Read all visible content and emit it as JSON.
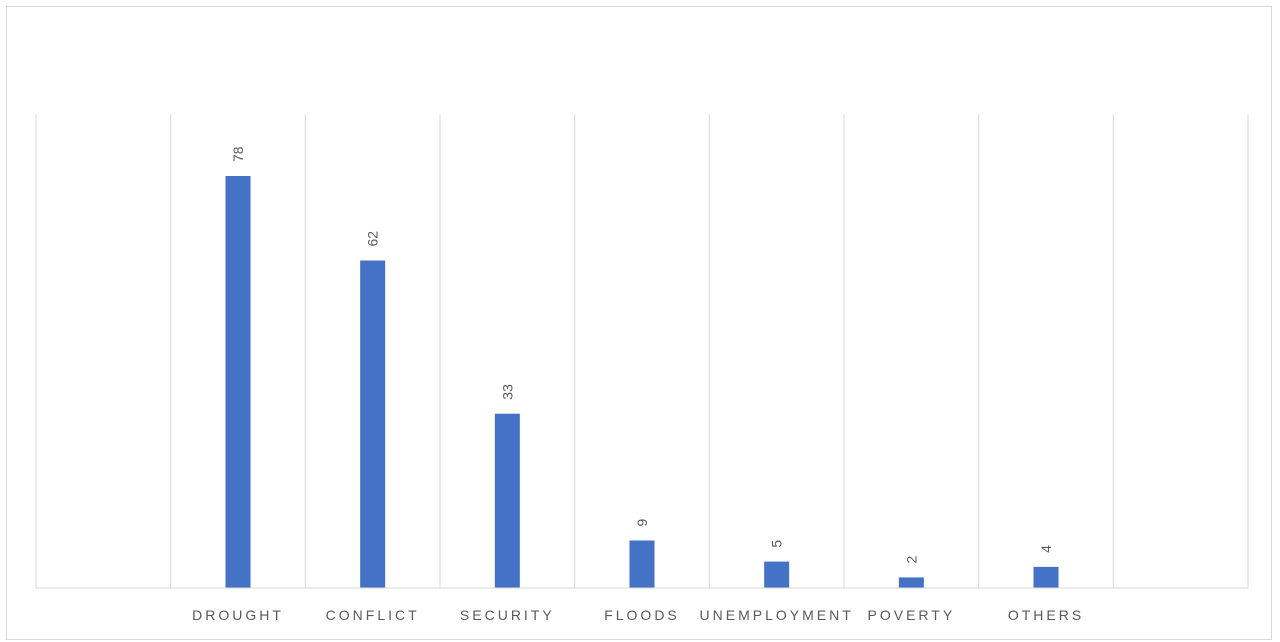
{
  "chart_data": {
    "type": "bar",
    "categories": [
      "",
      "DROUGHT",
      "CONFLICT",
      "SECURITY",
      "FLOODS",
      "UNEMPLOYMENT",
      "POVERTY",
      "OTHERS",
      ""
    ],
    "values": [
      null,
      78,
      62,
      33,
      9,
      5,
      2,
      4,
      null
    ],
    "ylim": [
      0,
      85
    ],
    "grid": "vertical",
    "data_labels": "rotated",
    "bar_color": "#4472c4",
    "grid_color": "#d9d9d9",
    "axis_color": "#d9d9d9",
    "text_color": "#595959"
  }
}
